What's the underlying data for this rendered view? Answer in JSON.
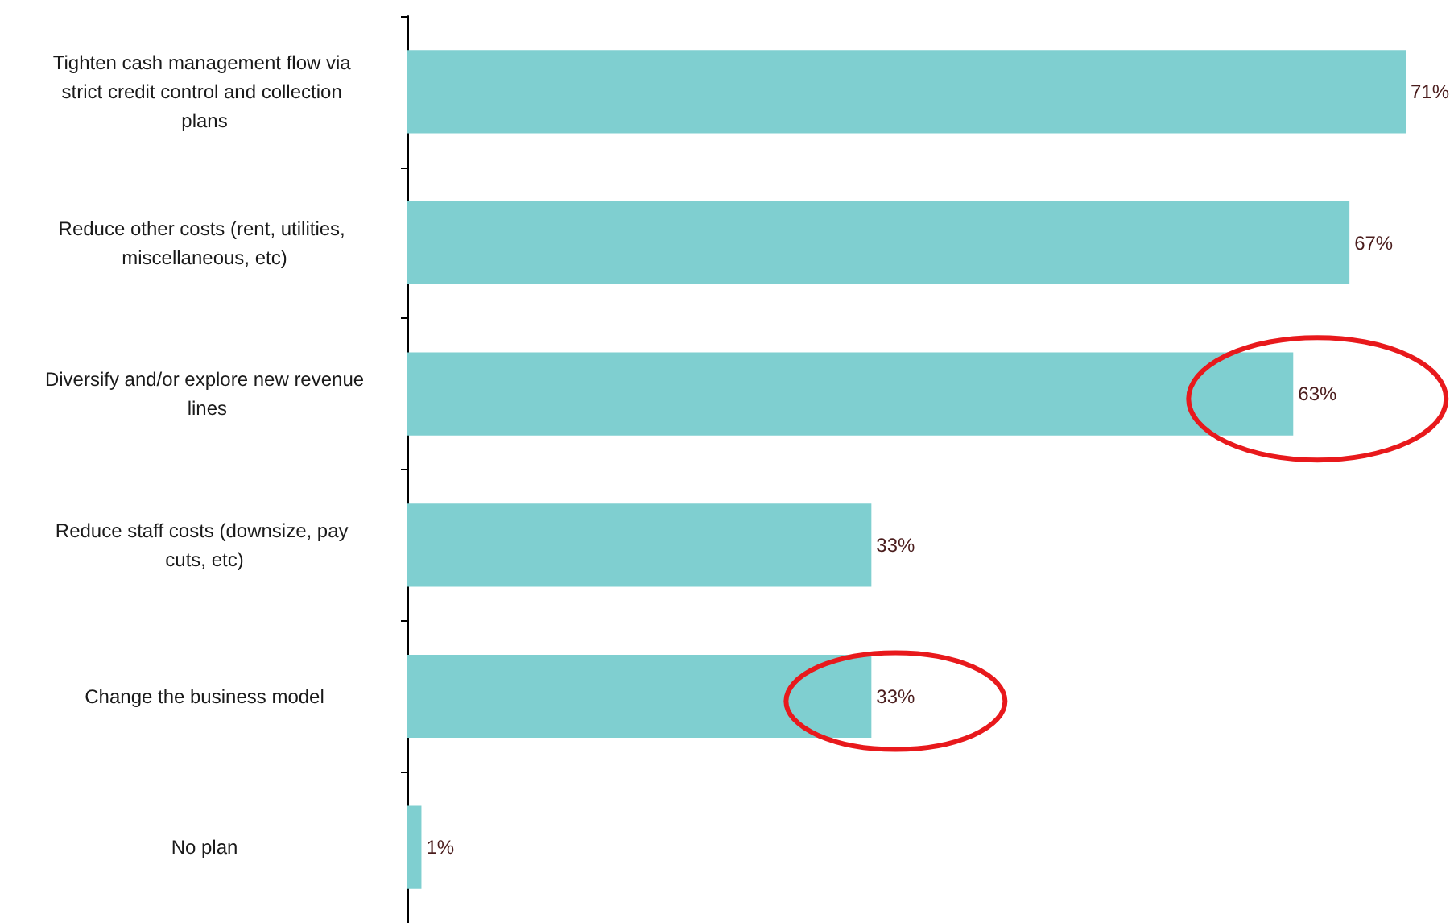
{
  "chart_data": {
    "type": "bar",
    "orientation": "horizontal",
    "categories": [
      "Tighten cash management flow via strict credit control and collection plans",
      "Reduce other costs (rent, utilities, miscellaneous, etc)",
      "Diversify and/or explore new revenue lines",
      "Reduce staff costs (downsize, pay cuts, etc)",
      "Change the business model",
      "No plan"
    ],
    "values": [
      71,
      67,
      63,
      33,
      33,
      1
    ],
    "value_labels": [
      "71%",
      "67%",
      "63%",
      "33%",
      "33%",
      "1%"
    ],
    "color": "#7fcfd0"
  }
}
